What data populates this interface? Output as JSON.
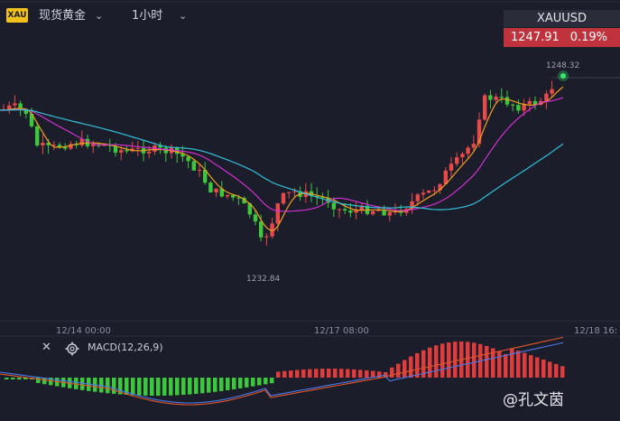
{
  "toolbar": {
    "symbol_badge": "XAU",
    "instrument": "现货黄金",
    "timeframe": "1小时"
  },
  "quote": {
    "symbol": "XAUUSD",
    "price": "1247.91",
    "change": "0.19%"
  },
  "main_chart": {
    "high_label": "1248.32",
    "low_label": "1232.84",
    "x_labels": [
      "12/14 00:00",
      "12/17 08:00",
      "12/18 16:"
    ]
  },
  "macd": {
    "label": "MACD(12,26,9)"
  },
  "watermark": "@孔文茵",
  "colors": {
    "bg": "#1c1d2a",
    "up": "#e84a4a",
    "down": "#3cc83c",
    "ma_fast": "#f0a020",
    "ma_mid": "#d030d0",
    "ma_slow": "#30c0d8"
  }
}
